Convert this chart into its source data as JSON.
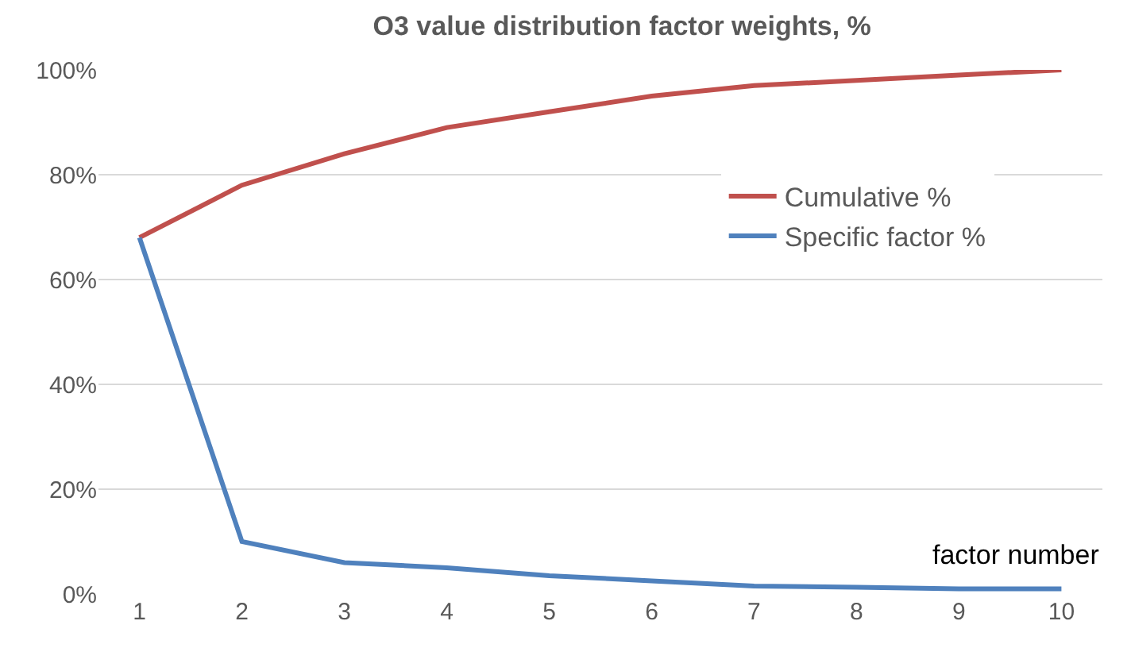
{
  "chart_data": {
    "type": "line",
    "title": "O3 value distribution factor weights, %",
    "xlabel": "factor number",
    "categories": [
      "1",
      "2",
      "3",
      "4",
      "5",
      "6",
      "7",
      "8",
      "9",
      "10"
    ],
    "series": [
      {
        "name": "Cumulative %",
        "color": "#c0504d",
        "values": [
          68,
          78,
          84,
          89,
          92,
          95,
          97,
          98,
          99,
          100
        ]
      },
      {
        "name": "Specific factor %",
        "color": "#4f81bd",
        "values": [
          68,
          10,
          6,
          5,
          3.5,
          2.5,
          1.5,
          1.3,
          1,
          1
        ]
      }
    ],
    "ylim": [
      0,
      100
    ],
    "yticks": [
      {
        "value": 0,
        "label": "0%"
      },
      {
        "value": 20,
        "label": "20%"
      },
      {
        "value": 40,
        "label": "40%"
      },
      {
        "value": 60,
        "label": "60%"
      },
      {
        "value": 80,
        "label": "80%"
      },
      {
        "value": 100,
        "label": "100%"
      }
    ],
    "grid": "y",
    "legend": "right",
    "marker": "none",
    "line_style": "solid"
  }
}
